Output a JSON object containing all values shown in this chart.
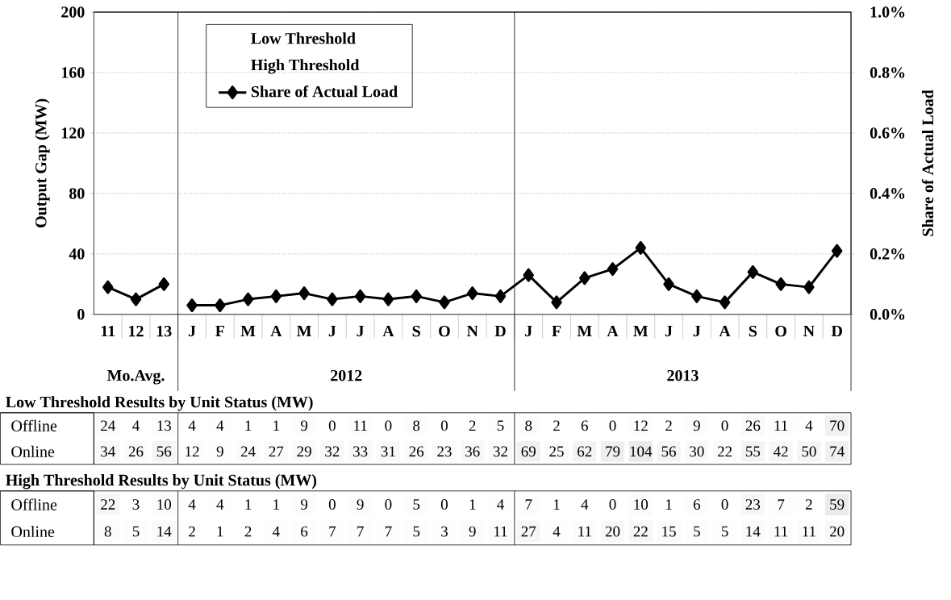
{
  "chart_data": [
    {
      "type": "line",
      "ylabel": "Output Gap (MW)",
      "y2label": "Share of Actual Load",
      "categories": [
        "11",
        "12",
        "13",
        "J",
        "F",
        "M",
        "A",
        "M",
        "J",
        "J",
        "A",
        "S",
        "O",
        "N",
        "D",
        "J",
        "F",
        "M",
        "A",
        "M",
        "J",
        "J",
        "A",
        "S",
        "O",
        "N",
        "D"
      ],
      "series": [
        {
          "name": "Share of Actual Load",
          "color": "#000000",
          "axis": "y2",
          "values": [
            null,
            null,
            null,
            0.03,
            0.03,
            0.05,
            0.06,
            0.07,
            0.05,
            0.06,
            0.05,
            0.06,
            0.04,
            0.07,
            0.06,
            0.13,
            0.04,
            0.12,
            0.15,
            0.22,
            0.1,
            0.06,
            0.04,
            0.14,
            0.1,
            0.09,
            0.21
          ]
        },
        {
          "color": "#000000",
          "axis": "y2",
          "values": [
            0.09,
            0.05,
            0.1,
            null,
            null,
            null,
            null,
            null,
            null,
            null,
            null,
            null,
            null,
            null,
            null,
            null,
            null,
            null,
            null,
            null,
            null,
            null,
            null,
            null,
            null,
            null,
            null
          ]
        }
      ],
      "ylim": [
        0,
        200
      ],
      "yticks": [
        0,
        40,
        80,
        120,
        160,
        200
      ],
      "y2lim": [
        0,
        1.0
      ],
      "y2ticks": [
        {
          "value": 0,
          "label": "0.0%"
        },
        {
          "value": 0.2,
          "label": "0.2%"
        },
        {
          "value": 0.4,
          "label": "0.4%"
        },
        {
          "value": 0.6,
          "label": "0.6%"
        },
        {
          "value": 0.8,
          "label": "0.8%"
        },
        {
          "value": 1.0,
          "label": "1.0%"
        }
      ],
      "grid": "y",
      "marker": "diamond",
      "line_style": "solid",
      "legend": "top left",
      "annotations": [
        "Low Threshold",
        "High Threshold",
        "Mo.Avg.",
        "2012",
        "2013"
      ]
    },
    {
      "type": "heatmap",
      "title": "Low Threshold Results by Unit Status (MW)",
      "categories": [
        null,
        null,
        null,
        null,
        null,
        null,
        null,
        null,
        null,
        null,
        null,
        null,
        null,
        null,
        null,
        null,
        null,
        null,
        null,
        null,
        null,
        null,
        null,
        null,
        null,
        null,
        null
      ],
      "y_categories": [
        "Offline",
        "Online"
      ],
      "cells": [
        [
          24,
          4,
          13,
          4,
          4,
          1,
          1,
          9,
          0,
          11,
          0,
          8,
          0,
          2,
          5,
          8,
          2,
          6,
          0,
          12,
          2,
          9,
          0,
          26,
          11,
          4,
          70
        ],
        [
          34,
          26,
          56,
          12,
          9,
          24,
          27,
          29,
          32,
          33,
          31,
          26,
          23,
          36,
          32,
          69,
          25,
          62,
          79,
          104,
          56,
          30,
          22,
          55,
          42,
          50,
          74
        ]
      ],
      "cell_labels": [
        [
          "24",
          "4",
          "13",
          "4",
          "4",
          "1",
          "1",
          "9",
          "0",
          "11",
          "0",
          "8",
          "0",
          "2",
          "5",
          "8",
          "2",
          "6",
          "0",
          "12",
          "2",
          "9",
          "0",
          "26",
          "11",
          "4",
          "70"
        ],
        [
          "34",
          "26",
          "56",
          "12",
          "9",
          "24",
          "27",
          "29",
          "32",
          "33",
          "31",
          "26",
          "23",
          "36",
          "32",
          "69",
          "25",
          "62",
          "79",
          "104",
          "56",
          "30",
          "22",
          "55",
          "42",
          "50",
          "74"
        ]
      ]
    },
    {
      "type": "heatmap",
      "title": "High Threshold Results by Unit Status (MW)",
      "categories": [
        null,
        null,
        null,
        null,
        null,
        null,
        null,
        null,
        null,
        null,
        null,
        null,
        null,
        null,
        null,
        null,
        null,
        null,
        null,
        null,
        null,
        null,
        null,
        null,
        null,
        null,
        null
      ],
      "y_categories": [
        "Offline",
        "Online"
      ],
      "cells": [
        [
          22,
          3,
          10,
          4,
          4,
          1,
          1,
          9,
          0,
          9,
          0,
          5,
          0,
          1,
          4,
          7,
          1,
          4,
          0,
          10,
          1,
          6,
          0,
          23,
          7,
          2,
          59
        ],
        [
          8,
          5,
          14,
          2,
          1,
          2,
          4,
          6,
          7,
          7,
          7,
          5,
          3,
          9,
          11,
          27,
          4,
          11,
          20,
          22,
          15,
          5,
          5,
          14,
          11,
          11,
          20
        ]
      ],
      "cell_labels": [
        [
          "22",
          "3",
          "10",
          "4",
          "4",
          "1",
          "1",
          "9",
          "0",
          "9",
          "0",
          "5",
          "0",
          "1",
          "4",
          "7",
          "1",
          "4",
          "0",
          "10",
          "1",
          "6",
          "0",
          "23",
          "7",
          "2",
          "59"
        ],
        [
          "8",
          "5",
          "14",
          "2",
          "1",
          "2",
          "4",
          "6",
          "7",
          "7",
          "7",
          "5",
          "3",
          "9",
          "11",
          "27",
          "4",
          "11",
          "20",
          "22",
          "15",
          "5",
          "5",
          "14",
          "11",
          "11",
          "20"
        ]
      ]
    }
  ]
}
